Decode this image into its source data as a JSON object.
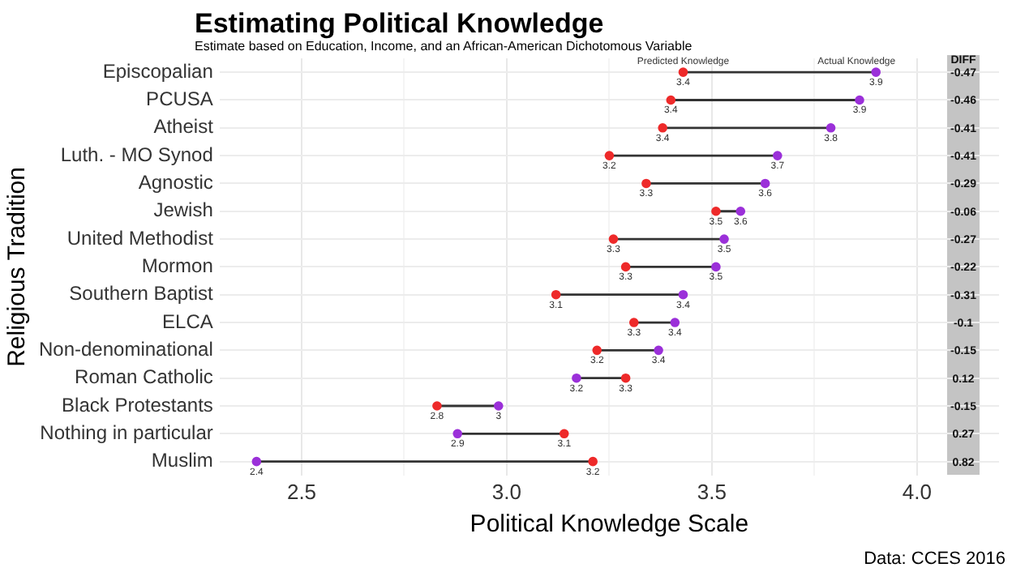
{
  "chart_data": {
    "type": "scatter",
    "orientation": "horizontal",
    "title": "Estimating Political Knowledge",
    "subtitle": "Estimate based on Education, Income, and an African-American Dichotomous Variable",
    "xlabel": "Political Knowledge Scale",
    "ylabel": "Religious Tradition",
    "categories": [
      "Episcopalian",
      "PCUSA",
      "Atheist",
      "Luth. - MO Synod",
      "Agnostic",
      "Jewish",
      "United Methodist",
      "Mormon",
      "Southern Baptist",
      "ELCA",
      "Non-denominational",
      "Roman Catholic",
      "Black Protestants",
      "Nothing in particular",
      "Muslim"
    ],
    "series": [
      {
        "name": "Predicted Knowledge",
        "color": "#ee2a2a",
        "values": [
          3.43,
          3.4,
          3.38,
          3.25,
          3.34,
          3.51,
          3.26,
          3.29,
          3.12,
          3.31,
          3.22,
          3.29,
          2.83,
          3.14,
          3.21
        ],
        "value_labels": [
          "3.4",
          "3.4",
          "3.4",
          "3.2",
          "3.3",
          "3.5",
          "3.3",
          "3.3",
          "3.1",
          "3.3",
          "3.2",
          "3.3",
          "2.8",
          "3.1",
          "3.2"
        ]
      },
      {
        "name": "Actual Knowledge",
        "color": "#9b30d9",
        "values": [
          3.9,
          3.86,
          3.79,
          3.66,
          3.63,
          3.57,
          3.53,
          3.51,
          3.43,
          3.41,
          3.37,
          3.17,
          2.98,
          2.88,
          2.39
        ],
        "value_labels": [
          "3.9",
          "3.9",
          "3.8",
          "3.7",
          "3.6",
          "3.6",
          "3.5",
          "3.5",
          "3.4",
          "3.4",
          "3.4",
          "3.2",
          "3",
          "2.9",
          "2.4"
        ]
      }
    ],
    "xlim": [
      2.3,
      4.2
    ],
    "xticks": [
      {
        "value": 2.5,
        "label": "2.5"
      },
      {
        "value": 3,
        "label": "3.0"
      },
      {
        "value": 3.5,
        "label": "3.5"
      },
      {
        "value": 4,
        "label": "4.0"
      }
    ],
    "grid": true,
    "legend": false,
    "marker": "circle",
    "annotations": [
      "DIFF",
      "-0.47",
      "-0.46",
      "-0.41",
      "-0.41",
      "-0.29",
      "-0.06",
      "-0.27",
      "-0.22",
      "-0.31",
      "-0.1",
      "-0.15",
      "0.12",
      "-0.15",
      "0.27",
      "0.82",
      "Data: CCES 2016"
    ]
  }
}
